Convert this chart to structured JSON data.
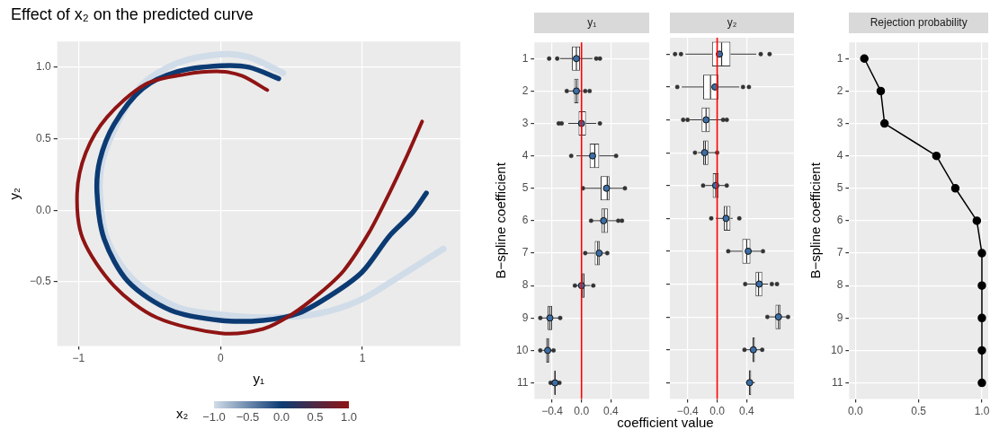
{
  "chart_data": [
    {
      "type": "line",
      "title": "Effect of x₂ on the predicted curve",
      "xlabel": "y₁",
      "ylabel": "y₂",
      "clabel": "x₂",
      "clim": [
        -1,
        1
      ],
      "cticks": [
        {
          "value": -1,
          "label": "−1.0"
        },
        {
          "value": -0.5,
          "label": "−0.5"
        },
        {
          "value": 0,
          "label": "0.0"
        },
        {
          "value": 0.5,
          "label": "0.5"
        },
        {
          "value": 1,
          "label": "1.0"
        }
      ],
      "xlim": [
        -1.15,
        1.69
      ],
      "ylim": [
        -0.95,
        1.18
      ],
      "xticks": [
        {
          "value": -1,
          "label": "−1"
        },
        0,
        1
      ],
      "yticks": [
        {
          "value": -0.5,
          "label": "−0.5"
        },
        {
          "value": 0,
          "label": "0.0"
        },
        {
          "value": 0.5,
          "label": "0.5"
        },
        {
          "value": 1,
          "label": "1.0"
        }
      ],
      "grid": true,
      "series": [
        {
          "color": "#d1dce9",
          "x": [
            0.44,
            0.2,
            0,
            -0.3,
            -0.55,
            -0.72,
            -0.83,
            -0.85,
            -0.8,
            -0.62,
            -0.3,
            0,
            0.35,
            0.7,
            0.98,
            1.25,
            1.57
          ],
          "values": [
            0.96,
            1.07,
            1.09,
            1.03,
            0.88,
            0.62,
            0.35,
            0.12,
            -0.2,
            -0.48,
            -0.68,
            -0.73,
            -0.75,
            -0.72,
            -0.63,
            -0.47,
            -0.27
          ]
        },
        {
          "color": "#0c3b73",
          "x": [
            0.41,
            0.2,
            0,
            -0.3,
            -0.55,
            -0.75,
            -0.85,
            -0.87,
            -0.82,
            -0.65,
            -0.35,
            0,
            0.3,
            0.55,
            0.8,
            1.0,
            1.19,
            1.35,
            1.45
          ],
          "values": [
            0.92,
            1.0,
            1.01,
            0.97,
            0.85,
            0.6,
            0.35,
            0.12,
            -0.2,
            -0.5,
            -0.7,
            -0.77,
            -0.77,
            -0.72,
            -0.58,
            -0.43,
            -0.18,
            -0.02,
            0.12
          ]
        },
        {
          "color": "#8f1414",
          "x": [
            0.33,
            0.15,
            0,
            -0.25,
            -0.53,
            -0.8,
            -0.95,
            -1.01,
            -0.97,
            -0.75,
            -0.45,
            0,
            0.3,
            0.5,
            0.7,
            0.87,
            1.05,
            1.19,
            1.3,
            1.42
          ],
          "values": [
            0.84,
            0.94,
            0.97,
            0.95,
            0.88,
            0.65,
            0.4,
            0.12,
            -0.2,
            -0.53,
            -0.75,
            -0.86,
            -0.83,
            -0.73,
            -0.58,
            -0.42,
            -0.15,
            0.12,
            0.35,
            0.62
          ]
        }
      ]
    },
    {
      "type": "box",
      "title": "y₁",
      "xlabel": "coefficient value",
      "ylabel": "B−spline coefficient",
      "orientation": "horizontal",
      "grid": true,
      "categories": [
        "1",
        "2",
        "3",
        "4",
        "5",
        "6",
        "7",
        "8",
        "9",
        "10",
        "11"
      ],
      "xlim": [
        -0.64,
        0.92
      ],
      "xticks": [
        {
          "value": -0.4,
          "label": "−0.4"
        },
        {
          "value": 0,
          "label": "0.0"
        },
        {
          "value": 0.4,
          "label": "0.4"
        }
      ],
      "ref_lines": [
        {
          "axis": "x",
          "value": 0,
          "color": "#ff0000"
        }
      ],
      "boxes": [
        {
          "low": -0.29,
          "q1": -0.13,
          "median": -0.07,
          "q3": -0.02,
          "high": 0.15,
          "mean": -0.07,
          "outliers": [
            -0.44,
            -0.33,
            0.2,
            0.25
          ]
        },
        {
          "low": -0.17,
          "q1": -0.1,
          "median": -0.07,
          "q3": -0.04,
          "high": 0.01,
          "mean": -0.07,
          "outliers": [
            -0.2,
            0.05,
            0.11
          ]
        },
        {
          "low": -0.18,
          "q1": -0.04,
          "median": 0,
          "q3": 0.06,
          "high": 0.2,
          "mean": 0,
          "outliers": [
            -0.31,
            -0.27,
            0.25
          ]
        },
        {
          "low": -0.07,
          "q1": 0.11,
          "median": 0.18,
          "q3": 0.24,
          "high": 0.45,
          "mean": 0.15,
          "outliers": [
            -0.14,
            0.47
          ]
        },
        {
          "low": 0.05,
          "q1": 0.26,
          "median": 0.35,
          "q3": 0.38,
          "high": 0.57,
          "mean": 0.34,
          "outliers": [
            0.02,
            0.59
          ]
        },
        {
          "low": 0.15,
          "q1": 0.27,
          "median": 0.31,
          "q3": 0.36,
          "high": 0.48,
          "mean": 0.3,
          "outliers": [
            0.13,
            0.5,
            0.55
          ]
        },
        {
          "low": 0.07,
          "q1": 0.18,
          "median": 0.22,
          "q3": 0.25,
          "high": 0.33,
          "mean": 0.24,
          "outliers": [
            0.05,
            0.35
          ]
        },
        {
          "low": -0.07,
          "q1": 0,
          "median": 0.01,
          "q3": 0.04,
          "high": 0.12,
          "mean": 0,
          "outliers": [
            -0.09,
            0.16
          ]
        },
        {
          "low": -0.54,
          "q1": -0.46,
          "median": -0.43,
          "q3": -0.4,
          "high": -0.3,
          "mean": -0.43,
          "outliers": [
            -0.56,
            -0.29
          ]
        },
        {
          "low": -0.53,
          "q1": -0.48,
          "median": -0.46,
          "q3": -0.44,
          "high": -0.39,
          "mean": -0.46,
          "outliers": [
            -0.56,
            -0.38
          ]
        },
        {
          "low": -0.41,
          "q1": -0.37,
          "median": -0.36,
          "q3": -0.35,
          "high": -0.31,
          "mean": -0.36,
          "outliers": [
            -0.42,
            -0.3
          ]
        }
      ]
    },
    {
      "type": "box",
      "title": "y₂",
      "orientation": "horizontal",
      "grid": true,
      "tick_labels": "x",
      "categories": [
        "1",
        "2",
        "3",
        "4",
        "5",
        "6",
        "7",
        "8",
        "9",
        "10",
        "11"
      ],
      "xlim": [
        -0.64,
        1.04
      ],
      "xticks": [
        {
          "value": -0.4,
          "label": "−0.4"
        },
        {
          "value": 0,
          "label": "0.0"
        },
        {
          "value": 0.4,
          "label": "0.4"
        }
      ],
      "ref_lines": [
        {
          "axis": "x",
          "value": 0,
          "color": "#ff0000"
        }
      ],
      "boxes": [
        {
          "low": -0.43,
          "q1": -0.07,
          "median": 0.06,
          "q3": 0.18,
          "high": 0.53,
          "mean": 0.03,
          "outliers": [
            -0.57,
            -0.49,
            0.59,
            0.71
          ]
        },
        {
          "low": -0.48,
          "q1": -0.19,
          "median": -0.09,
          "q3": 0.02,
          "high": 0.3,
          "mean": -0.03,
          "outliers": [
            -0.54,
            0.35,
            0.43
          ]
        },
        {
          "low": -0.37,
          "q1": -0.21,
          "median": -0.15,
          "q3": -0.1,
          "high": 0.06,
          "mean": -0.15,
          "outliers": [
            -0.46,
            -0.4,
            0.08,
            0.13
          ]
        },
        {
          "low": -0.26,
          "q1": -0.19,
          "median": -0.16,
          "q3": -0.12,
          "high": -0.02,
          "mean": -0.17,
          "outliers": [
            -0.3,
            0
          ]
        },
        {
          "low": -0.16,
          "q1": -0.06,
          "median": -0.02,
          "q3": 0.02,
          "high": 0.11,
          "mean": -0.02,
          "outliers": [
            -0.19,
            0.13
          ]
        },
        {
          "low": -0.02,
          "q1": 0.09,
          "median": 0.13,
          "q3": 0.18,
          "high": 0.21,
          "mean": 0.12,
          "outliers": [
            -0.08,
            0.3
          ]
        },
        {
          "low": 0.17,
          "q1": 0.34,
          "median": 0.4,
          "q3": 0.45,
          "high": 0.59,
          "mean": 0.42,
          "outliers": [
            0.15,
            0.62
          ]
        },
        {
          "low": 0.41,
          "q1": 0.52,
          "median": 0.56,
          "q3": 0.61,
          "high": 0.69,
          "mean": 0.57,
          "outliers": [
            0.38,
            0.74,
            0.81
          ]
        },
        {
          "low": 0.71,
          "q1": 0.79,
          "median": 0.83,
          "q3": 0.86,
          "high": 0.95,
          "mean": 0.83,
          "outliers": [
            0.68,
            0.96
          ]
        },
        {
          "low": 0.39,
          "q1": 0.48,
          "median": 0.49,
          "q3": 0.51,
          "high": 0.59,
          "mean": 0.49,
          "outliers": [
            0.37,
            0.61
          ]
        },
        {
          "low": 0.39,
          "q1": 0.43,
          "median": 0.44,
          "q3": 0.46,
          "high": 0.51,
          "mean": 0.44
        }
      ]
    },
    {
      "type": "line",
      "title": "Rejection probability",
      "ylabel": "B−spline coefficient",
      "orientation": "horizontal",
      "grid": true,
      "marker": "circle",
      "color": "#000000",
      "categories": [
        "1",
        "2",
        "3",
        "4",
        "5",
        "6",
        "7",
        "8",
        "9",
        "10",
        "11"
      ],
      "values": [
        0.07,
        0.2,
        0.23,
        0.64,
        0.79,
        0.96,
        1.0,
        1.0,
        1.0,
        1.0,
        1.0
      ],
      "xlim": [
        -0.05,
        1.05
      ],
      "xticks": [
        {
          "value": 0,
          "label": "0.0"
        },
        {
          "value": 0.5,
          "label": "0.5"
        },
        {
          "value": 1,
          "label": "1.0"
        }
      ]
    }
  ]
}
